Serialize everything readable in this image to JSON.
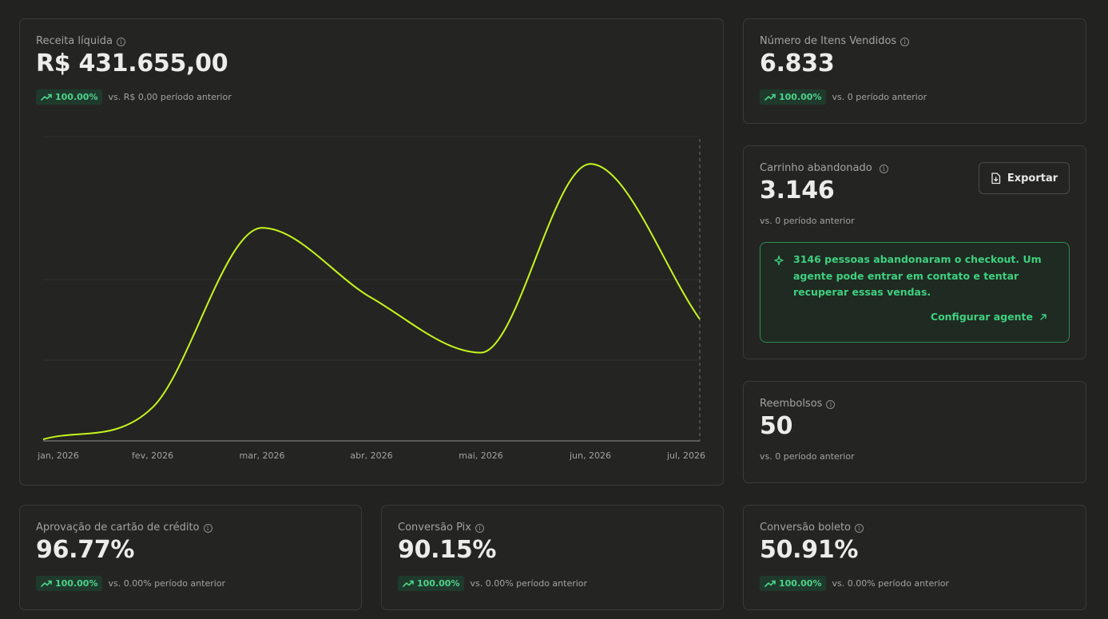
{
  "revenue": {
    "label": "Receita líquida",
    "value": "R$ 431.655,00",
    "badge": "100.00%",
    "comparison": "vs. R$ 0,00 período anterior"
  },
  "items_sold": {
    "label": "Número de Itens Vendidos",
    "value": "6.833",
    "badge": "100.00%",
    "comparison": "vs. 0 período anterior"
  },
  "abandoned_cart": {
    "label": "Carrinho abandonado",
    "value": "3.146",
    "comparison": "vs. 0 período anterior",
    "export_label": "Exportar",
    "agent_message": "3146 pessoas abandonaram o checkout. Um agente pode entrar em contato e tentar recuperar essas vendas.",
    "agent_link": "Configurar agente"
  },
  "refunds": {
    "label": "Reembolsos",
    "value": "50",
    "comparison": "vs. 0 período anterior"
  },
  "card_approval": {
    "label": "Aprovação de cartão de crédito",
    "value": "96.77%",
    "badge": "100.00%",
    "comparison": "vs. 0.00% período anterior"
  },
  "pix_conversion": {
    "label": "Conversão Pix",
    "value": "90.15%",
    "badge": "100.00%",
    "comparison": "vs. 0.00% período anterior"
  },
  "boleto_conversion": {
    "label": "Conversão boleto",
    "value": "50.91%",
    "badge": "100.00%",
    "comparison": "vs. 0.00% período anterior"
  },
  "colors": {
    "line": "#c6f61c",
    "positive": "#4ed28a",
    "agent": "#3fd07f"
  },
  "chart_data": {
    "type": "line",
    "x": [
      "jan, 2026",
      "fev, 2026",
      "mar, 2026",
      "abr, 2026",
      "mai, 2026",
      "jun, 2026",
      "jul, 2026"
    ],
    "values": [
      0.5,
      11,
      70,
      47,
      29,
      91,
      40
    ],
    "ylim": [
      0,
      100
    ],
    "grid": true,
    "y_tick_labels_shown": false
  }
}
